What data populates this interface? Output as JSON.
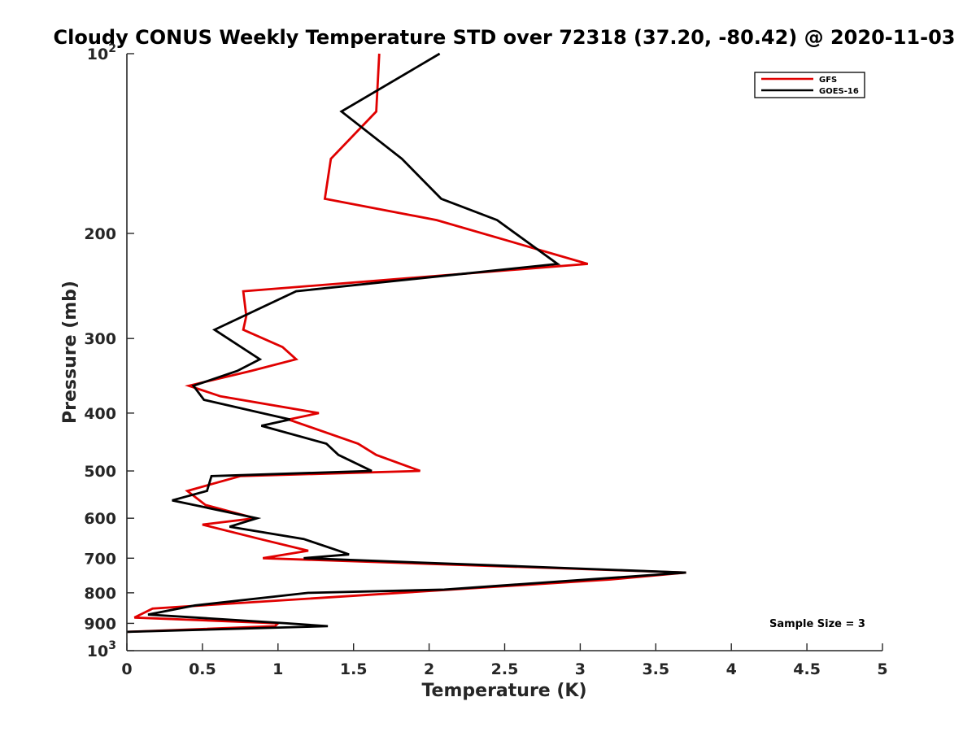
{
  "chart_data": {
    "type": "line",
    "title": "Cloudy CONUS Weekly Temperature STD over 72318 (37.20, -80.42) @ 2020-11-03",
    "xlabel": "Temperature (K)",
    "ylabel": "Pressure (mb)",
    "xlim": [
      0,
      5
    ],
    "ylim": [
      100,
      1000
    ],
    "y_scale": "log",
    "y_reversed": true,
    "x_ticks": [
      "0",
      "0.5",
      "1",
      "1.5",
      "2",
      "2.5",
      "3",
      "3.5",
      "4",
      "4.5",
      "5"
    ],
    "y_ticks": [
      {
        "value": 200,
        "label": "200"
      },
      {
        "value": 300,
        "label": "300"
      },
      {
        "value": 400,
        "label": "400"
      },
      {
        "value": 500,
        "label": "500"
      },
      {
        "value": 600,
        "label": "600"
      },
      {
        "value": 700,
        "label": "700"
      },
      {
        "value": 800,
        "label": "800"
      },
      {
        "value": 900,
        "label": "900"
      }
    ],
    "y_power_ticks": [
      {
        "value": 100,
        "base": "10",
        "exp": "2"
      },
      {
        "value": 1000,
        "base": "10",
        "exp": "3"
      }
    ],
    "grid": false,
    "legend_position": "top-right",
    "annotation": "Sample Size = 3",
    "series": [
      {
        "name": "GFS",
        "color": "#e00000",
        "points": [
          [
            1.67,
            100
          ],
          [
            1.65,
            125
          ],
          [
            1.35,
            150
          ],
          [
            1.31,
            175
          ],
          [
            2.05,
            190
          ],
          [
            3.05,
            225
          ],
          [
            0.77,
            250
          ],
          [
            0.79,
            275
          ],
          [
            0.77,
            290
          ],
          [
            1.03,
            310
          ],
          [
            1.12,
            325
          ],
          [
            0.82,
            340
          ],
          [
            0.41,
            360
          ],
          [
            0.62,
            375
          ],
          [
            1.27,
            400
          ],
          [
            1.07,
            410
          ],
          [
            1.53,
            450
          ],
          [
            1.65,
            470
          ],
          [
            1.94,
            500
          ],
          [
            0.75,
            510
          ],
          [
            0.4,
            540
          ],
          [
            0.52,
            570
          ],
          [
            0.85,
            600
          ],
          [
            0.5,
            615
          ],
          [
            0.88,
            650
          ],
          [
            1.2,
            680
          ],
          [
            0.9,
            700
          ],
          [
            3.7,
            740
          ],
          [
            3.2,
            760
          ],
          [
            0.17,
            850
          ],
          [
            0.05,
            880
          ],
          [
            1.0,
            900
          ],
          [
            0.98,
            910
          ],
          [
            0.0,
            930
          ]
        ]
      },
      {
        "name": "GOES-16",
        "color": "#000000",
        "points": [
          [
            2.07,
            100
          ],
          [
            1.42,
            125
          ],
          [
            1.82,
            150
          ],
          [
            2.08,
            175
          ],
          [
            2.45,
            190
          ],
          [
            2.85,
            225
          ],
          [
            1.12,
            250
          ],
          [
            0.58,
            290
          ],
          [
            0.88,
            325
          ],
          [
            0.73,
            340
          ],
          [
            0.44,
            360
          ],
          [
            0.51,
            380
          ],
          [
            1.08,
            410
          ],
          [
            0.89,
            420
          ],
          [
            1.32,
            450
          ],
          [
            1.4,
            470
          ],
          [
            1.62,
            500
          ],
          [
            0.56,
            510
          ],
          [
            0.53,
            540
          ],
          [
            0.3,
            560
          ],
          [
            0.86,
            600
          ],
          [
            0.68,
            620
          ],
          [
            1.17,
            650
          ],
          [
            1.4,
            680
          ],
          [
            1.47,
            690
          ],
          [
            1.17,
            700
          ],
          [
            3.7,
            740
          ],
          [
            2.1,
            790
          ],
          [
            1.2,
            800
          ],
          [
            0.45,
            840
          ],
          [
            0.14,
            870
          ],
          [
            1.06,
            900
          ],
          [
            1.33,
            910
          ],
          [
            0.0,
            930
          ]
        ]
      }
    ]
  }
}
